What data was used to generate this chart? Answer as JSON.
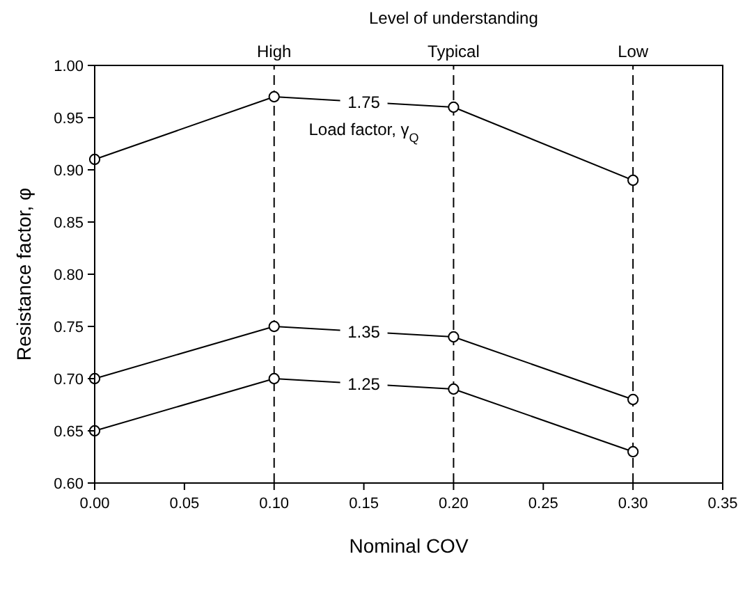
{
  "chart_data": {
    "type": "line",
    "xlabel": "Nominal COV",
    "ylabel": "Resistance factor,  φ",
    "x": [
      0,
      0.1,
      0.2,
      0.3
    ],
    "series": [
      {
        "name": "1.75",
        "color": "#000000",
        "values": [
          0.91,
          0.97,
          0.96,
          0.89
        ]
      },
      {
        "name": "1.35",
        "color": "#000000",
        "values": [
          0.7,
          0.75,
          0.74,
          0.68
        ]
      },
      {
        "name": "1.25",
        "color": "#000000",
        "values": [
          0.65,
          0.7,
          0.69,
          0.63
        ]
      }
    ],
    "xlim": [
      0,
      0.35
    ],
    "xticks": [
      {
        "value": 0,
        "label": "0.00"
      },
      {
        "value": 0.05,
        "label": "0.05"
      },
      {
        "value": 0.1,
        "label": "0.10"
      },
      {
        "value": 0.15,
        "label": "0.15"
      },
      {
        "value": 0.2,
        "label": "0.20"
      },
      {
        "value": 0.25,
        "label": "0.25"
      },
      {
        "value": 0.3,
        "label": "0.30"
      },
      {
        "value": 0.35,
        "label": "0.35"
      }
    ],
    "ylim": [
      0.6,
      1.0
    ],
    "yticks": [
      {
        "value": 0.6,
        "label": "0.60"
      },
      {
        "value": 0.65,
        "label": "0.65"
      },
      {
        "value": 0.7,
        "label": "0.70"
      },
      {
        "value": 0.75,
        "label": "0.75"
      },
      {
        "value": 0.8,
        "label": "0.80"
      },
      {
        "value": 0.85,
        "label": "0.85"
      },
      {
        "value": 0.9,
        "label": "0.90"
      },
      {
        "value": 0.95,
        "label": "0.95"
      },
      {
        "value": 1.0,
        "label": "1.00"
      }
    ],
    "ref_lines": [
      {
        "axis": "x",
        "value": 0.1,
        "label": "High",
        "line_style": "dashed"
      },
      {
        "axis": "x",
        "value": 0.2,
        "label": "Typical",
        "line_style": "dashed"
      },
      {
        "axis": "x",
        "value": 0.3,
        "label": "Low",
        "line_style": "dashed"
      }
    ],
    "annotations": [
      "Level of understanding",
      "Load factor, γ$_{Q}$"
    ],
    "marker": "circle",
    "line_style": "solid",
    "grid": false
  }
}
